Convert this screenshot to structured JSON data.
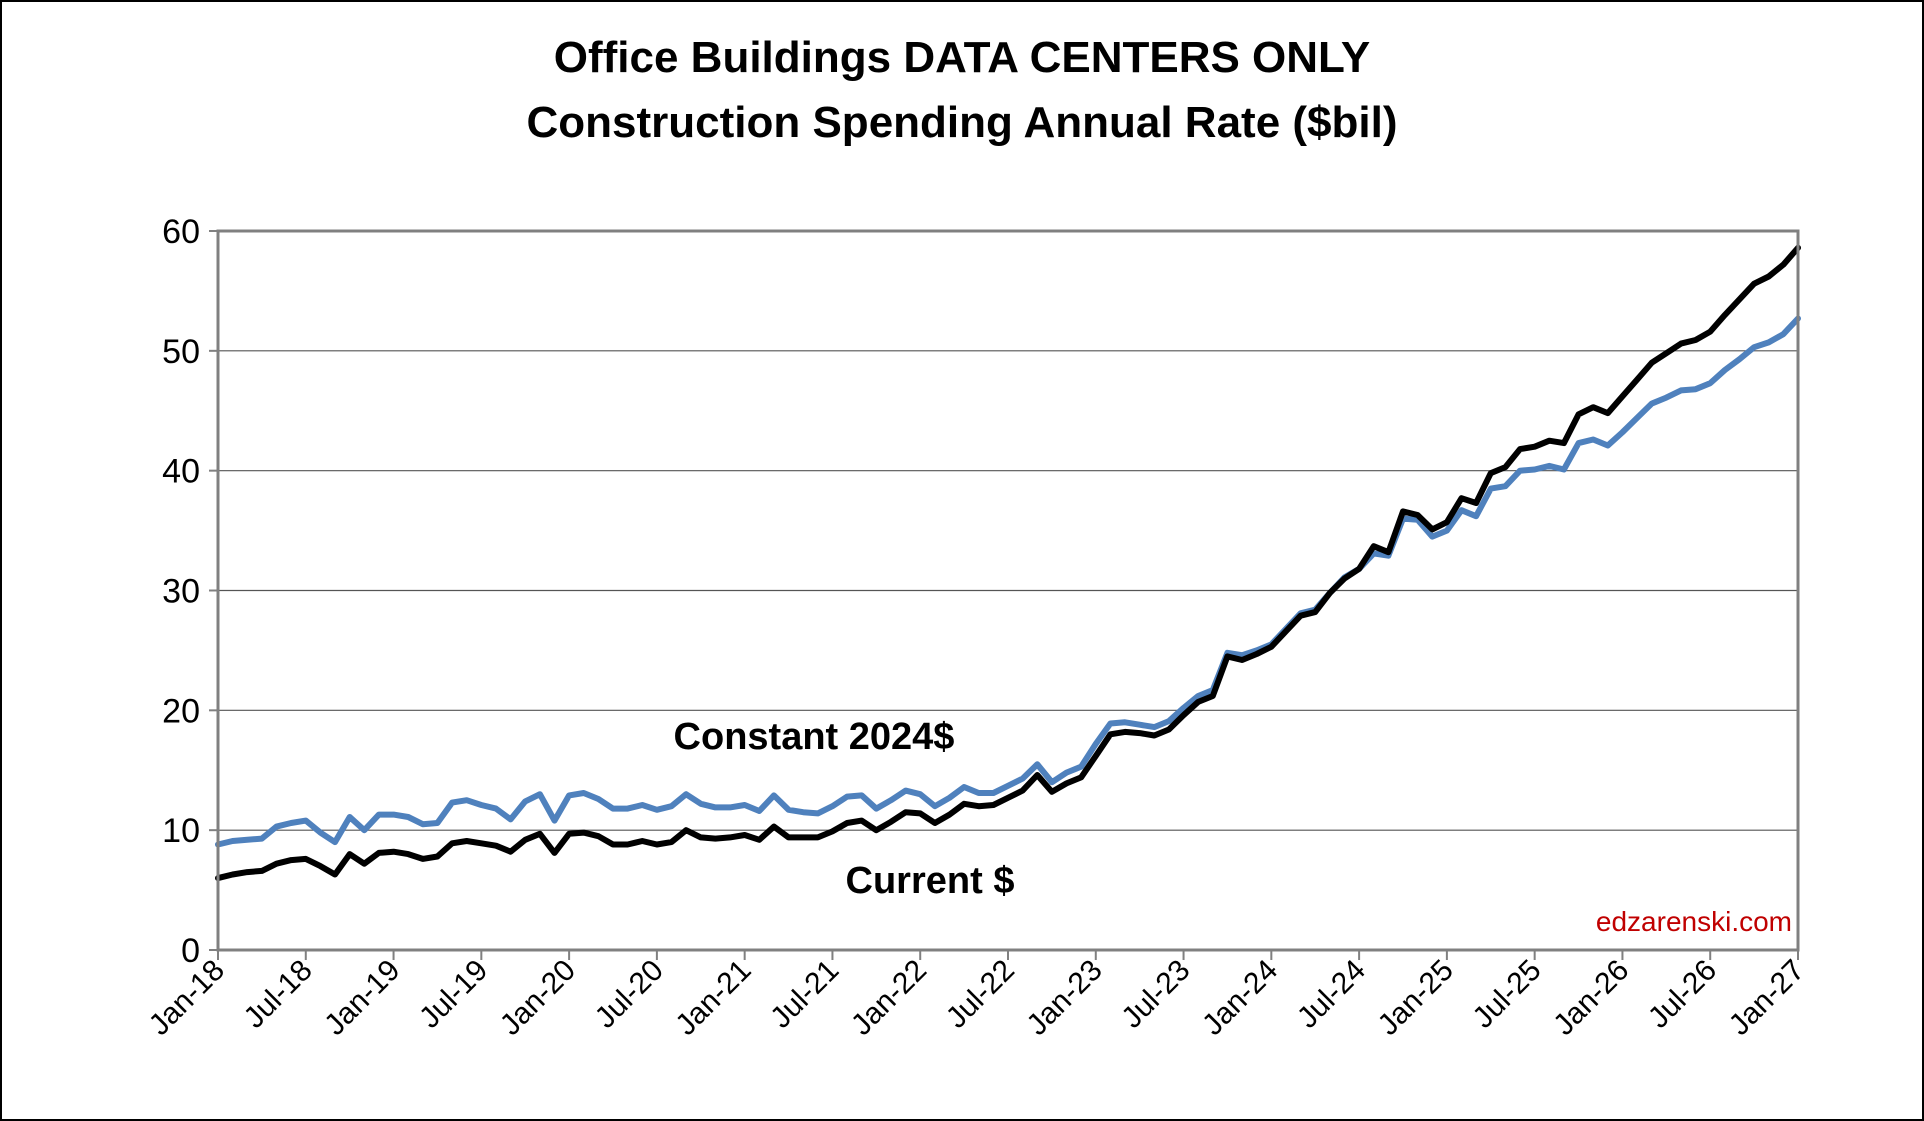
{
  "chart_data": {
    "type": "line",
    "title_lines": [
      "Office Buildings DATA CENTERS ONLY",
      "Construction Spending Annual Rate ($bil)"
    ],
    "xlabel": "",
    "ylabel": "",
    "ylim": [
      0,
      60
    ],
    "yticks": [
      0,
      10,
      20,
      30,
      40,
      50,
      60
    ],
    "grid": true,
    "x_tick_labels": [
      "Jan-18",
      "Jul-18",
      "Jan-19",
      "Jul-19",
      "Jan-20",
      "Jul-20",
      "Jan-21",
      "Jul-21",
      "Jan-22",
      "Jul-22",
      "Jan-23",
      "Jul-23",
      "Jan-24",
      "Jul-24",
      "Jan-25",
      "Jul-25",
      "Jan-26",
      "Jul-26",
      "Jan-27"
    ],
    "x_start": "Jan-18",
    "x_end": "Jan-27",
    "series": [
      {
        "name": "Constant 2024$",
        "color": "#4f81bd",
        "values": [
          8.8,
          9.1,
          9.2,
          9.3,
          10.3,
          10.6,
          10.8,
          9.8,
          9.0,
          11.1,
          10.0,
          11.3,
          11.3,
          11.1,
          10.5,
          10.6,
          12.3,
          12.5,
          12.1,
          11.8,
          10.9,
          12.4,
          13.0,
          10.8,
          12.9,
          13.1,
          12.6,
          11.8,
          11.8,
          12.1,
          11.7,
          12.0,
          13.0,
          12.2,
          11.9,
          11.9,
          12.1,
          11.6,
          12.9,
          11.7,
          11.5,
          11.4,
          12.0,
          12.8,
          12.9,
          11.8,
          12.5,
          13.3,
          13.0,
          12.0,
          12.7,
          13.6,
          13.1,
          13.1,
          13.7,
          14.3,
          15.5,
          14.0,
          14.8,
          15.3,
          17.2,
          18.9,
          19.0,
          18.8,
          18.6,
          19.1,
          20.2,
          21.2,
          21.7,
          24.8,
          24.6,
          25.0,
          25.5,
          26.8,
          28.1,
          28.4,
          29.8,
          31.1,
          31.8,
          33.1,
          32.9,
          36.0,
          35.9,
          34.5,
          35.0,
          36.7,
          36.2,
          38.5,
          38.7,
          40.0,
          40.1,
          40.4,
          40.1,
          42.3,
          42.6,
          42.1,
          43.2,
          44.4,
          45.6,
          46.1,
          46.7,
          46.8,
          47.3,
          48.4,
          49.3,
          50.3,
          50.7,
          51.4,
          52.7
        ]
      },
      {
        "name": "Current $",
        "color": "#000000",
        "values": [
          6.0,
          6.3,
          6.5,
          6.6,
          7.2,
          7.5,
          7.6,
          7.0,
          6.3,
          8.0,
          7.2,
          8.1,
          8.2,
          8.0,
          7.6,
          7.8,
          8.9,
          9.1,
          8.9,
          8.7,
          8.2,
          9.2,
          9.7,
          8.1,
          9.7,
          9.8,
          9.5,
          8.8,
          8.8,
          9.1,
          8.8,
          9.0,
          10.0,
          9.4,
          9.3,
          9.4,
          9.6,
          9.2,
          10.3,
          9.4,
          9.4,
          9.4,
          9.9,
          10.6,
          10.8,
          10.0,
          10.7,
          11.5,
          11.4,
          10.6,
          11.3,
          12.2,
          12.0,
          12.1,
          12.7,
          13.3,
          14.6,
          13.2,
          13.9,
          14.4,
          16.2,
          18.0,
          18.2,
          18.1,
          17.9,
          18.4,
          19.6,
          20.7,
          21.2,
          24.5,
          24.2,
          24.7,
          25.3,
          26.6,
          27.9,
          28.2,
          29.8,
          31.0,
          31.8,
          33.7,
          33.2,
          36.6,
          36.3,
          35.1,
          35.7,
          37.7,
          37.3,
          39.8,
          40.3,
          41.8,
          42.0,
          42.5,
          42.3,
          44.7,
          45.3,
          44.8,
          46.2,
          47.6,
          49.0,
          49.8,
          50.6,
          50.9,
          51.6,
          53.0,
          54.3,
          55.6,
          56.2,
          57.2,
          58.6
        ]
      }
    ],
    "annotations": [
      {
        "text": "Constant 2024$",
        "series": "Constant 2024$"
      },
      {
        "text": "Current $",
        "series": "Current $"
      }
    ],
    "watermark": "edzarenski.com",
    "watermark_color": "#c00000"
  }
}
